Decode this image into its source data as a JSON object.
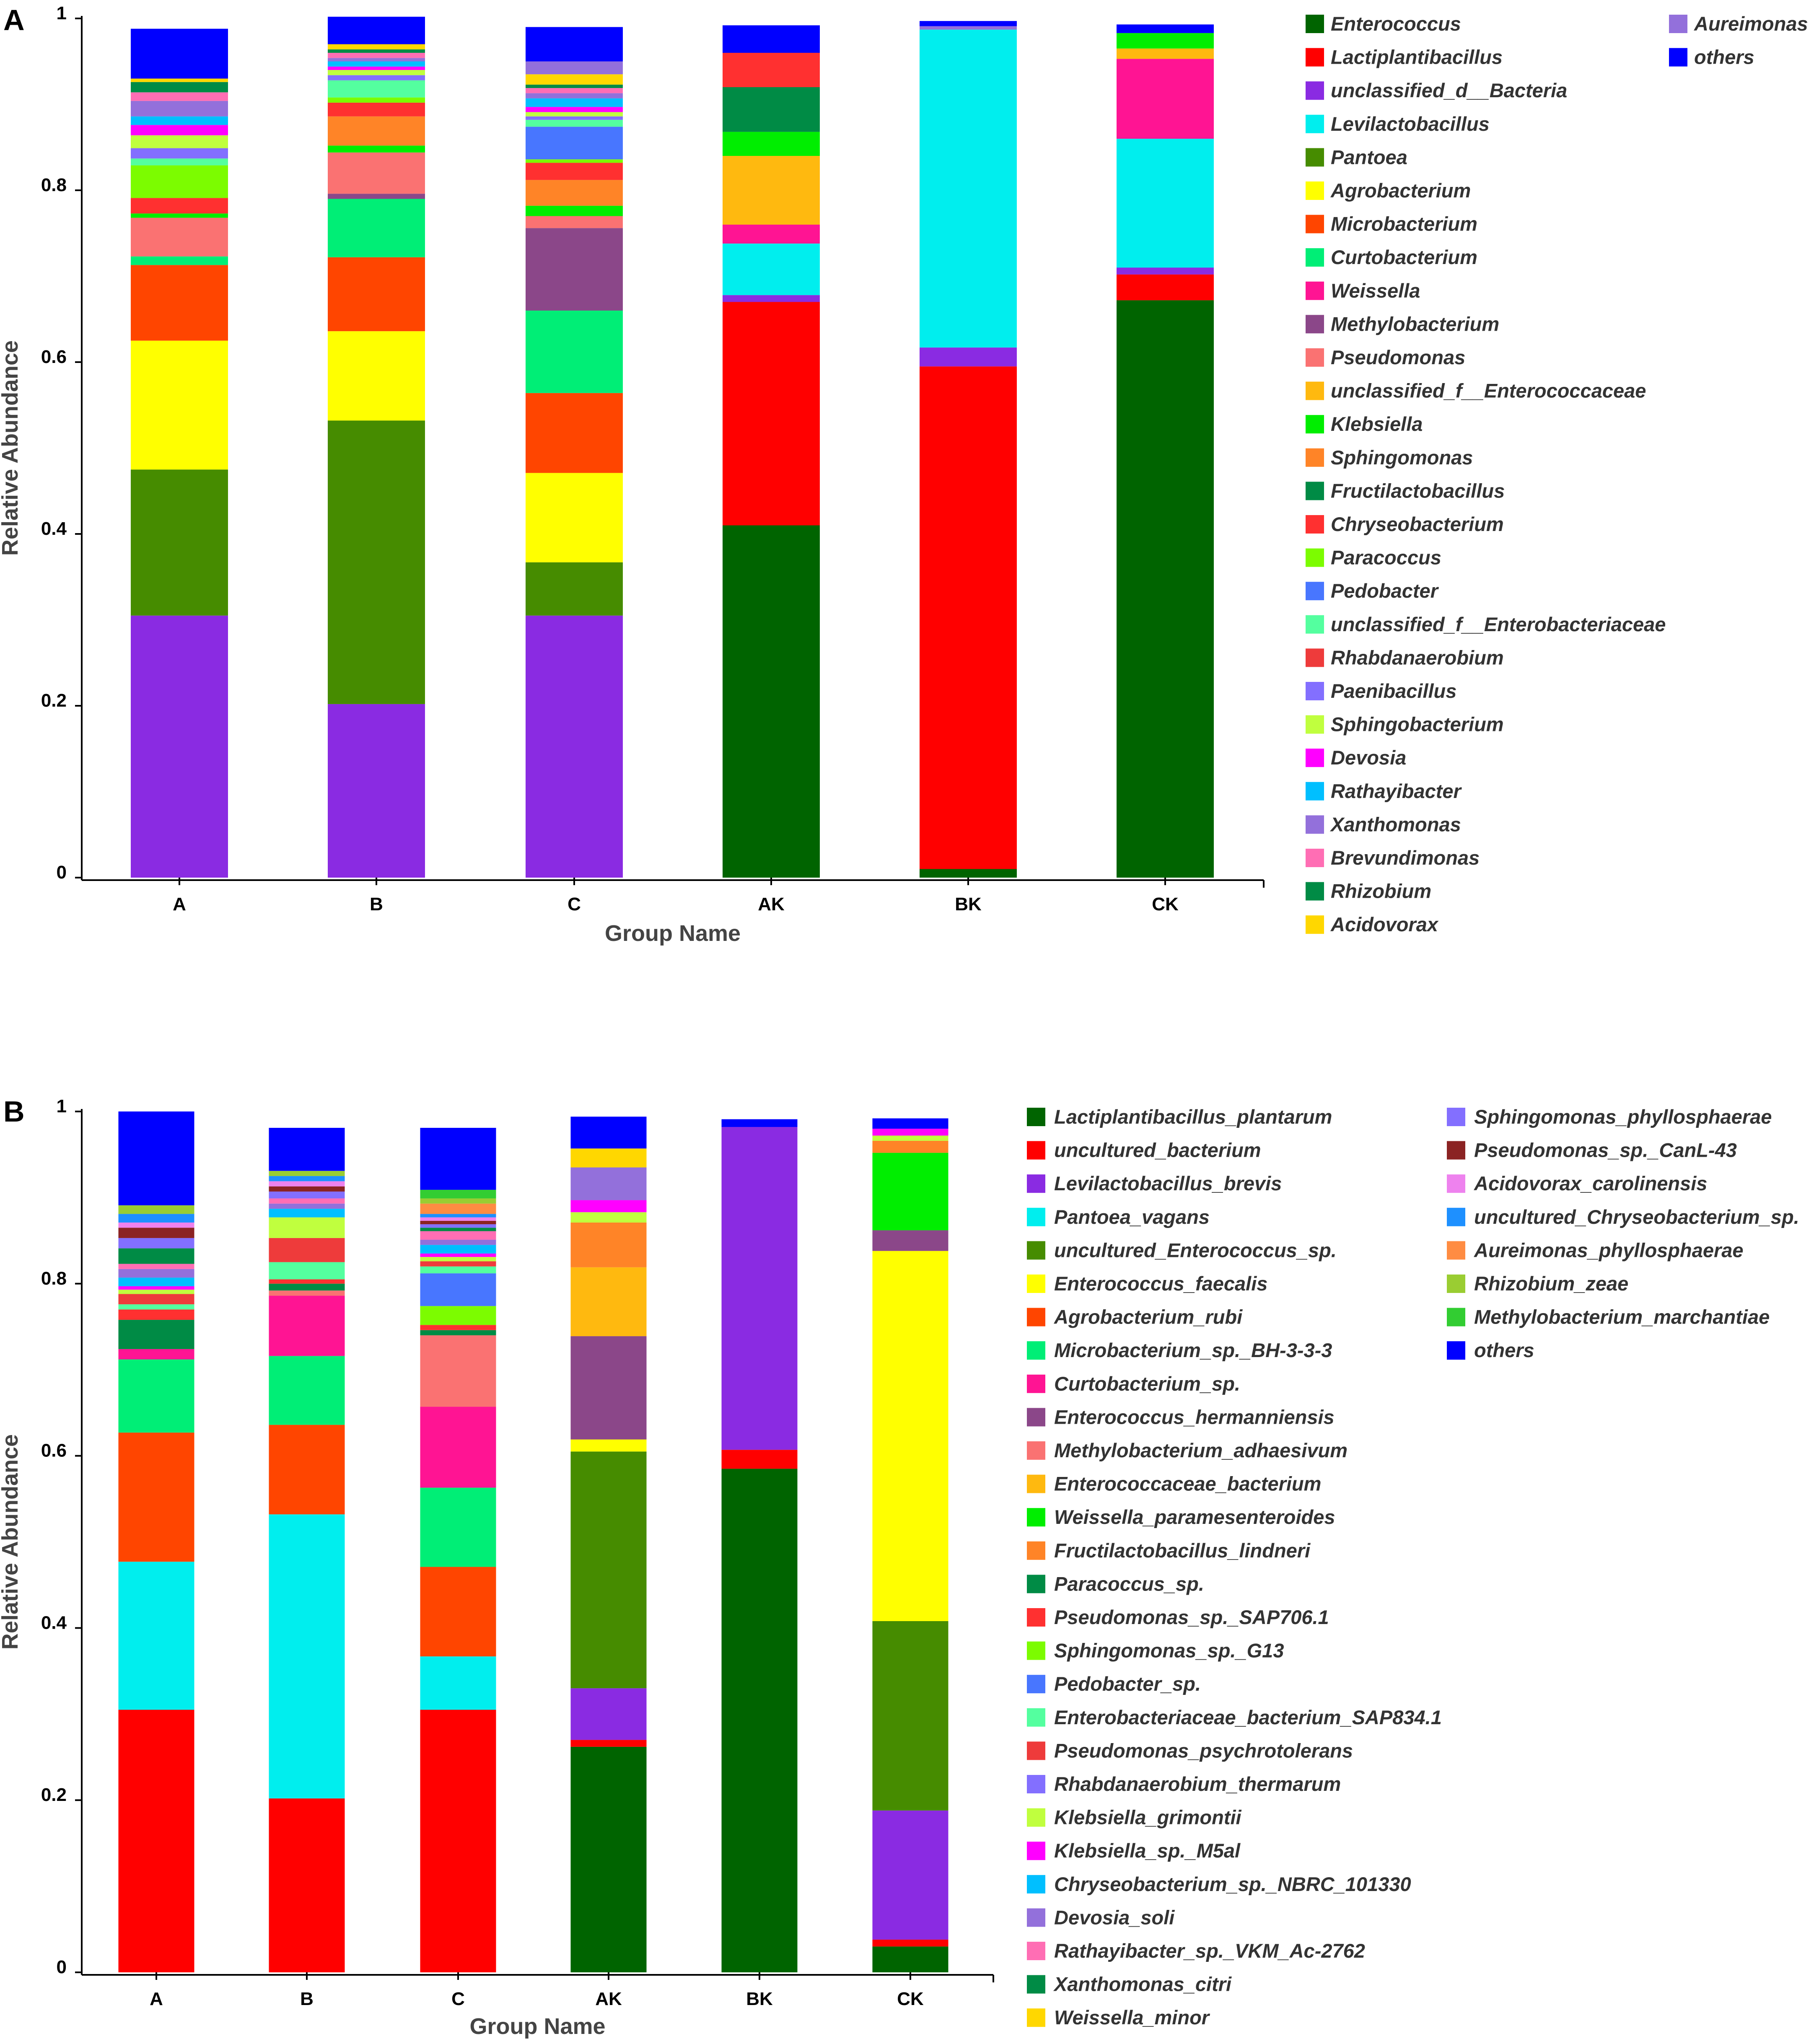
{
  "colors": {
    "dkgreen": "#006400",
    "red": "#ff0000",
    "purple": "#8a2be2",
    "cyan": "#00eeee",
    "olive": "#468c00",
    "yellow": "#ffff00",
    "orangered": "#ff4500",
    "springgreen": "#00ee76",
    "deeppink": "#ff1493",
    "plum": "#8b4789",
    "salmon": "#fa7272",
    "orange": "#ffb90f",
    "lime": "#00ee00",
    "orange2": "#ff8427",
    "seagreen": "#008b45",
    "red2": "#ff3030",
    "lawngreen": "#7cfc00",
    "royalblue": "#4876ff",
    "aqua": "#54ff9f",
    "red3": "#ee3b3b",
    "medpurple": "#836fff",
    "greenyellow": "#c0ff3e",
    "magenta": "#ff00ff",
    "skyblue": "#00bfff",
    "mediumpurple": "#9370db",
    "pink": "#ff6eb4",
    "gold": "#ffd700",
    "blue": "#0000ff",
    "brown": "#8b2323",
    "violet": "#ee82ee",
    "dodger": "#1e90ff",
    "coral": "#ff8c42",
    "yellowgreen": "#9acd32",
    "limegreen": "#32cd32"
  },
  "panels": {
    "A": {
      "label": "A"
    },
    "B": {
      "label": "B"
    }
  },
  "chart_data": [
    {
      "type": "bar",
      "stacked": true,
      "panel": "A",
      "title": "",
      "xlabel": "Group Name",
      "ylabel": "Relative Abundance",
      "ylim": [
        0,
        1
      ],
      "yticks": [
        "0",
        "0.2",
        "0.4",
        "0.6",
        "0.8",
        "1"
      ],
      "categories": [
        "A",
        "B",
        "C",
        "AK",
        "BK",
        "CK"
      ],
      "series": [
        {
          "name": "Enterococcus",
          "color": "dkgreen",
          "values": [
            0.0,
            0.0,
            0.0,
            0.41,
            0.01,
            0.672
          ]
        },
        {
          "name": "Lactiplantibacillus",
          "color": "red",
          "values": [
            0.0,
            0.0,
            0.0,
            0.26,
            0.585,
            0.03
          ]
        },
        {
          "name": "unclassified_d__Bacteria",
          "color": "purple",
          "values": [
            0.305,
            0.202,
            0.305,
            0.008,
            0.022,
            0.008
          ]
        },
        {
          "name": "Levilactobacillus",
          "color": "cyan",
          "values": [
            0.0,
            0.0,
            0.0,
            0.06,
            0.37,
            0.15
          ]
        },
        {
          "name": "Pantoea",
          "color": "olive",
          "values": [
            0.17,
            0.33,
            0.062,
            0.0,
            0.0,
            0.0
          ]
        },
        {
          "name": "Agrobacterium",
          "color": "yellow",
          "values": [
            0.15,
            0.104,
            0.104,
            0.0,
            0.0,
            0.0
          ]
        },
        {
          "name": "Microbacterium",
          "color": "orangered",
          "values": [
            0.088,
            0.086,
            0.093,
            0.0,
            0.0,
            0.0
          ]
        },
        {
          "name": "Curtobacterium",
          "color": "springgreen",
          "values": [
            0.01,
            0.068,
            0.096,
            0.0,
            0.0,
            0.0
          ]
        },
        {
          "name": "Weissella",
          "color": "deeppink",
          "values": [
            0.0,
            0.0,
            0.0,
            0.022,
            0.0,
            0.093
          ]
        },
        {
          "name": "Methylobacterium",
          "color": "plum",
          "values": [
            0.0,
            0.006,
            0.096,
            0.0,
            0.0,
            0.0
          ]
        },
        {
          "name": "Pseudomonas",
          "color": "salmon",
          "values": [
            0.045,
            0.048,
            0.014,
            0.0,
            0.0,
            0.0
          ]
        },
        {
          "name": "unclassified_f__Enterococcaceae",
          "color": "orange",
          "values": [
            0.0,
            0.0,
            0.0,
            0.08,
            0.0,
            0.012
          ]
        },
        {
          "name": "Klebsiella",
          "color": "lime",
          "values": [
            0.005,
            0.008,
            0.012,
            0.028,
            0.0,
            0.018
          ]
        },
        {
          "name": "Sphingomonas",
          "color": "orange2",
          "values": [
            0.0,
            0.034,
            0.03,
            0.0,
            0.0,
            0.0
          ]
        },
        {
          "name": "Fructilactobacillus",
          "color": "seagreen",
          "values": [
            0.0,
            0.0,
            0.0,
            0.052,
            0.0,
            0.0
          ]
        },
        {
          "name": "Chryseobacterium",
          "color": "red2",
          "values": [
            0.018,
            0.016,
            0.02,
            0.04,
            0.0,
            0.0
          ]
        },
        {
          "name": "Paracoccus",
          "color": "lawngreen",
          "values": [
            0.038,
            0.006,
            0.004,
            0.0,
            0.0,
            0.0
          ]
        },
        {
          "name": "Pedobacter",
          "color": "royalblue",
          "values": [
            0.0,
            0.0,
            0.038,
            0.0,
            0.0,
            0.0
          ]
        },
        {
          "name": "unclassified_f__Enterobacteriaceae",
          "color": "aqua",
          "values": [
            0.008,
            0.02,
            0.008,
            0.0,
            0.0,
            0.0
          ]
        },
        {
          "name": "Rhabdanaerobium",
          "color": "red3",
          "values": [
            0.0,
            0.0,
            0.0,
            0.0,
            0.0,
            0.0
          ]
        },
        {
          "name": "Paenibacillus",
          "color": "medpurple",
          "values": [
            0.012,
            0.006,
            0.004,
            0.0,
            0.0,
            0.0
          ]
        },
        {
          "name": "Sphingobacterium",
          "color": "greenyellow",
          "values": [
            0.015,
            0.006,
            0.005,
            0.0,
            0.0,
            0.0
          ]
        },
        {
          "name": "Devosia",
          "color": "magenta",
          "values": [
            0.012,
            0.004,
            0.006,
            0.0,
            0.0,
            0.0
          ]
        },
        {
          "name": "Rathayibacter",
          "color": "skyblue",
          "values": [
            0.01,
            0.006,
            0.01,
            0.0,
            0.0,
            0.0
          ]
        },
        {
          "name": "Xanthomonas",
          "color": "mediumpurple",
          "values": [
            0.018,
            0.004,
            0.006,
            0.0,
            0.0,
            0.0
          ]
        },
        {
          "name": "Brevundimonas",
          "color": "pink",
          "values": [
            0.01,
            0.006,
            0.006,
            0.0,
            0.0,
            0.0
          ]
        },
        {
          "name": "Rhizobium",
          "color": "seagreen",
          "values": [
            0.012,
            0.004,
            0.004,
            0.0,
            0.0,
            0.0
          ]
        },
        {
          "name": "Acidovorax",
          "color": "gold",
          "values": [
            0.004,
            0.006,
            0.012,
            0.0,
            0.0,
            0.0
          ]
        },
        {
          "name": "Aureimonas",
          "color": "mediumpurple",
          "values": [
            0.0,
            0.0,
            0.015,
            0.0,
            0.004,
            0.0
          ]
        },
        {
          "name": "others",
          "color": "blue",
          "values": [
            0.058,
            0.032,
            0.04,
            0.032,
            0.006,
            0.01
          ]
        }
      ]
    },
    {
      "type": "bar",
      "stacked": true,
      "panel": "B",
      "title": "",
      "xlabel": "Group Name",
      "ylabel": "Relative Abundance",
      "ylim": [
        0,
        1
      ],
      "yticks": [
        "0",
        "0.2",
        "0.4",
        "0.6",
        "0.8",
        "1"
      ],
      "categories": [
        "A",
        "B",
        "C",
        "AK",
        "BK",
        "CK"
      ],
      "series": [
        {
          "name": "Lactiplantibacillus_plantarum",
          "color": "dkgreen",
          "values": [
            0.0,
            0.0,
            0.0,
            0.262,
            0.585,
            0.03
          ]
        },
        {
          "name": "uncultured_bacterium",
          "color": "red",
          "values": [
            0.305,
            0.202,
            0.305,
            0.008,
            0.022,
            0.008
          ]
        },
        {
          "name": "Levilactobacillus_brevis",
          "color": "purple",
          "values": [
            0.0,
            0.0,
            0.0,
            0.06,
            0.375,
            0.15
          ]
        },
        {
          "name": "Pantoea_vagans",
          "color": "cyan",
          "values": [
            0.172,
            0.33,
            0.062,
            0.0,
            0.0,
            0.0
          ]
        },
        {
          "name": "uncultured_Enterococcus_sp.",
          "color": "olive",
          "values": [
            0.0,
            0.0,
            0.0,
            0.275,
            0.0,
            0.22
          ]
        },
        {
          "name": "Enterococcus_faecalis",
          "color": "yellow",
          "values": [
            0.0,
            0.0,
            0.0,
            0.014,
            0.0,
            0.43
          ]
        },
        {
          "name": "Agrobacterium_rubi",
          "color": "orangered",
          "values": [
            0.15,
            0.104,
            0.104,
            0.0,
            0.0,
            0.0
          ]
        },
        {
          "name": "Microbacterium_sp._BH-3-3-3",
          "color": "springgreen",
          "values": [
            0.085,
            0.08,
            0.092,
            0.0,
            0.0,
            0.0
          ]
        },
        {
          "name": "Curtobacterium_sp.",
          "color": "deeppink",
          "values": [
            0.012,
            0.07,
            0.094,
            0.0,
            0.0,
            0.0
          ]
        },
        {
          "name": "Enterococcus_hermanniensis",
          "color": "plum",
          "values": [
            0.0,
            0.0,
            0.0,
            0.12,
            0.0,
            0.024
          ]
        },
        {
          "name": "Methylobacterium_adhaesivum",
          "color": "salmon",
          "values": [
            0.0,
            0.006,
            0.083,
            0.0,
            0.0,
            0.0
          ]
        },
        {
          "name": "Enterococcaceae_bacterium",
          "color": "orange",
          "values": [
            0.0,
            0.0,
            0.0,
            0.08,
            0.0,
            0.0
          ]
        },
        {
          "name": "Weissella_paramesenteroides",
          "color": "lime",
          "values": [
            0.0,
            0.0,
            0.0,
            0.0,
            0.0,
            0.09
          ]
        },
        {
          "name": "Fructilactobacillus_lindneri",
          "color": "orange2",
          "values": [
            0.0,
            0.0,
            0.0,
            0.052,
            0.0,
            0.014
          ]
        },
        {
          "name": "Paracoccus_sp.",
          "color": "seagreen",
          "values": [
            0.034,
            0.008,
            0.006,
            0.0,
            0.0,
            0.0
          ]
        },
        {
          "name": "Pseudomonas_sp._SAP706.1",
          "color": "red2",
          "values": [
            0.012,
            0.005,
            0.006,
            0.0,
            0.0,
            0.0
          ]
        },
        {
          "name": "Sphingomonas_sp._G13",
          "color": "lawngreen",
          "values": [
            0.0,
            0.0,
            0.022,
            0.0,
            0.0,
            0.0
          ]
        },
        {
          "name": "Pedobacter_sp.",
          "color": "royalblue",
          "values": [
            0.0,
            0.0,
            0.038,
            0.0,
            0.0,
            0.0
          ]
        },
        {
          "name": "Enterobacteriaceae_bacterium_SAP834.1",
          "color": "aqua",
          "values": [
            0.006,
            0.02,
            0.008,
            0.0,
            0.0,
            0.0
          ]
        },
        {
          "name": "Pseudomonas_psychrotolerans",
          "color": "red3",
          "values": [
            0.012,
            0.028,
            0.006,
            0.0,
            0.0,
            0.0
          ]
        },
        {
          "name": "Rhabdanaerobium_thermarum",
          "color": "medpurple",
          "values": [
            0.0,
            0.0,
            0.0,
            0.0,
            0.0,
            0.0
          ]
        },
        {
          "name": "Klebsiella_grimontii",
          "color": "greenyellow",
          "values": [
            0.005,
            0.024,
            0.005,
            0.012,
            0.0,
            0.006
          ]
        },
        {
          "name": "Klebsiella_sp._M5al",
          "color": "magenta",
          "values": [
            0.004,
            0.0,
            0.004,
            0.014,
            0.0,
            0.008
          ]
        },
        {
          "name": "Chryseobacterium_sp._NBRC_101330",
          "color": "skyblue",
          "values": [
            0.01,
            0.01,
            0.01,
            0.0,
            0.0,
            0.0
          ]
        },
        {
          "name": "Devosia_soli",
          "color": "mediumpurple",
          "values": [
            0.01,
            0.006,
            0.006,
            0.038,
            0.0,
            0.0
          ]
        },
        {
          "name": "Rathayibacter_sp._VKM_Ac-2762",
          "color": "pink",
          "values": [
            0.006,
            0.006,
            0.01,
            0.0,
            0.0,
            0.0
          ]
        },
        {
          "name": "Xanthomonas_citri",
          "color": "seagreen",
          "values": [
            0.018,
            0.0,
            0.004,
            0.0,
            0.0,
            0.0
          ]
        },
        {
          "name": "Weissella_minor",
          "color": "gold",
          "values": [
            0.0,
            0.0,
            0.0,
            0.022,
            0.0,
            0.0
          ]
        },
        {
          "name": "Sphingomonas_phyllosphaerae",
          "color": "medpurple",
          "values": [
            0.012,
            0.008,
            0.004,
            0.0,
            0.0,
            0.0
          ]
        },
        {
          "name": "Pseudomonas_sp._CanL-43",
          "color": "brown",
          "values": [
            0.012,
            0.006,
            0.004,
            0.0,
            0.0,
            0.0
          ]
        },
        {
          "name": "Acidovorax_carolinensis",
          "color": "violet",
          "values": [
            0.006,
            0.006,
            0.004,
            0.0,
            0.0,
            0.0
          ]
        },
        {
          "name": "uncultured_Chryseobacterium_sp.",
          "color": "dodger",
          "values": [
            0.01,
            0.006,
            0.004,
            0.0,
            0.0,
            0.0
          ]
        },
        {
          "name": "Aureimonas_phyllosphaerae",
          "color": "coral",
          "values": [
            0.0,
            0.0,
            0.012,
            0.0,
            0.0,
            0.0
          ]
        },
        {
          "name": "Rhizobium_zeae",
          "color": "yellowgreen",
          "values": [
            0.01,
            0.006,
            0.006,
            0.0,
            0.0,
            0.0
          ]
        },
        {
          "name": "Methylobacterium_marchantiae",
          "color": "limegreen",
          "values": [
            0.0,
            0.0,
            0.01,
            0.0,
            0.0,
            0.0
          ]
        },
        {
          "name": "others",
          "color": "blue",
          "values": [
            0.109,
            0.05,
            0.072,
            0.037,
            0.009,
            0.012
          ]
        }
      ]
    }
  ]
}
